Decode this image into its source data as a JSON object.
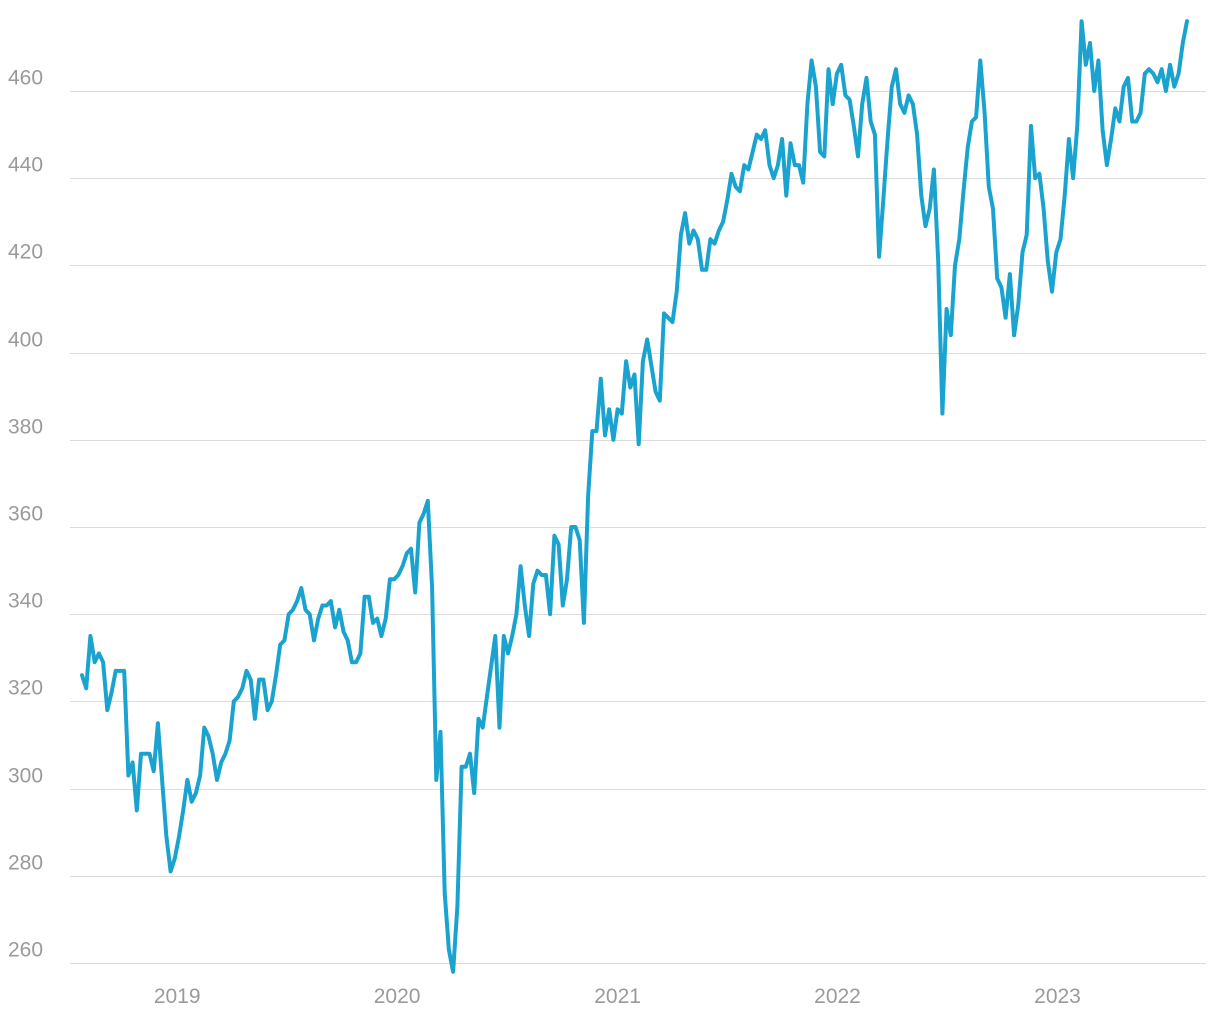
{
  "colors": {
    "line": "#1aa3cf",
    "grid": "#dcdcdc",
    "tick_text": "#9a9a9a",
    "background": "#ffffff"
  },
  "chart_data": {
    "type": "line",
    "title": "",
    "xlabel": "",
    "ylabel": "",
    "x_tick_labels": [
      "2019",
      "2020",
      "2021",
      "2022",
      "2023"
    ],
    "y_ticks": [
      260,
      280,
      300,
      320,
      340,
      360,
      380,
      400,
      420,
      440,
      460
    ],
    "ylim": [
      258,
      476
    ],
    "xlim": [
      "2018-07-27",
      "2023-08-04"
    ],
    "grid": true,
    "legend": "none",
    "x": [
      "2018-07-27",
      "2018-08-03",
      "2018-08-10",
      "2018-08-17",
      "2018-08-24",
      "2018-08-31",
      "2018-09-07",
      "2018-09-14",
      "2018-09-21",
      "2018-09-28",
      "2018-10-05",
      "2018-10-12",
      "2018-10-19",
      "2018-10-26",
      "2018-11-02",
      "2018-11-09",
      "2018-11-16",
      "2018-11-23",
      "2018-11-30",
      "2018-12-07",
      "2018-12-14",
      "2018-12-21",
      "2018-12-28",
      "2019-01-04",
      "2019-01-11",
      "2019-01-18",
      "2019-01-25",
      "2019-02-01",
      "2019-02-08",
      "2019-02-15",
      "2019-02-22",
      "2019-03-01",
      "2019-03-08",
      "2019-03-15",
      "2019-03-22",
      "2019-03-29",
      "2019-04-05",
      "2019-04-12",
      "2019-04-19",
      "2019-04-26",
      "2019-05-03",
      "2019-05-10",
      "2019-05-17",
      "2019-05-24",
      "2019-05-31",
      "2019-06-07",
      "2019-06-14",
      "2019-06-21",
      "2019-06-28",
      "2019-07-05",
      "2019-07-12",
      "2019-07-19",
      "2019-07-26",
      "2019-08-02",
      "2019-08-09",
      "2019-08-16",
      "2019-08-23",
      "2019-08-30",
      "2019-09-06",
      "2019-09-13",
      "2019-09-20",
      "2019-09-27",
      "2019-10-04",
      "2019-10-11",
      "2019-10-18",
      "2019-10-25",
      "2019-11-01",
      "2019-11-08",
      "2019-11-15",
      "2019-11-22",
      "2019-11-29",
      "2019-12-06",
      "2019-12-13",
      "2019-12-20",
      "2019-12-27",
      "2020-01-03",
      "2020-01-10",
      "2020-01-17",
      "2020-01-24",
      "2020-01-31",
      "2020-02-07",
      "2020-02-14",
      "2020-02-21",
      "2020-02-28",
      "2020-03-06",
      "2020-03-13",
      "2020-03-20",
      "2020-03-27",
      "2020-04-03",
      "2020-04-10",
      "2020-04-17",
      "2020-04-24",
      "2020-05-01",
      "2020-05-08",
      "2020-05-15",
      "2020-05-22",
      "2020-05-29",
      "2020-06-05",
      "2020-06-12",
      "2020-06-19",
      "2020-06-26",
      "2020-07-03",
      "2020-07-10",
      "2020-07-17",
      "2020-07-24",
      "2020-07-31",
      "2020-08-07",
      "2020-08-14",
      "2020-08-21",
      "2020-08-28",
      "2020-09-04",
      "2020-09-11",
      "2020-09-18",
      "2020-09-25",
      "2020-10-02",
      "2020-10-09",
      "2020-10-16",
      "2020-10-23",
      "2020-10-30",
      "2020-11-06",
      "2020-11-13",
      "2020-11-20",
      "2020-11-27",
      "2020-12-04",
      "2020-12-11",
      "2020-12-18",
      "2020-12-25",
      "2021-01-01",
      "2021-01-08",
      "2021-01-15",
      "2021-01-22",
      "2021-01-29",
      "2021-02-05",
      "2021-02-12",
      "2021-02-19",
      "2021-02-26",
      "2021-03-05",
      "2021-03-12",
      "2021-03-19",
      "2021-03-26",
      "2021-04-02",
      "2021-04-09",
      "2021-04-16",
      "2021-04-23",
      "2021-04-30",
      "2021-05-07",
      "2021-05-14",
      "2021-05-21",
      "2021-05-28",
      "2021-06-04",
      "2021-06-11",
      "2021-06-18",
      "2021-06-25",
      "2021-07-02",
      "2021-07-09",
      "2021-07-16",
      "2021-07-23",
      "2021-07-30",
      "2021-08-06",
      "2021-08-13",
      "2021-08-20",
      "2021-08-27",
      "2021-09-03",
      "2021-09-10",
      "2021-09-17",
      "2021-09-24",
      "2021-10-01",
      "2021-10-08",
      "2021-10-15",
      "2021-10-22",
      "2021-10-29",
      "2021-11-05",
      "2021-11-12",
      "2021-11-19",
      "2021-11-26",
      "2021-12-03",
      "2021-12-10",
      "2021-12-17",
      "2021-12-24",
      "2021-12-31",
      "2022-01-07",
      "2022-01-14",
      "2022-01-21",
      "2022-01-28",
      "2022-02-04",
      "2022-02-11",
      "2022-02-18",
      "2022-02-25",
      "2022-03-04",
      "2022-03-11",
      "2022-03-18",
      "2022-03-25",
      "2022-04-01",
      "2022-04-08",
      "2022-04-15",
      "2022-04-22",
      "2022-04-29",
      "2022-05-06",
      "2022-05-13",
      "2022-05-20",
      "2022-05-27",
      "2022-06-03",
      "2022-06-10",
      "2022-06-17",
      "2022-06-24",
      "2022-07-01",
      "2022-07-08",
      "2022-07-15",
      "2022-07-22",
      "2022-07-29",
      "2022-08-05",
      "2022-08-12",
      "2022-08-19",
      "2022-08-26",
      "2022-09-02",
      "2022-09-09",
      "2022-09-16",
      "2022-09-23",
      "2022-09-30",
      "2022-10-07",
      "2022-10-14",
      "2022-10-21",
      "2022-10-28",
      "2022-11-04",
      "2022-11-11",
      "2022-11-18",
      "2022-11-25",
      "2022-12-02",
      "2022-12-09",
      "2022-12-16",
      "2022-12-23",
      "2022-12-30",
      "2023-01-06",
      "2023-01-13",
      "2023-01-20",
      "2023-01-27",
      "2023-02-03",
      "2023-02-10",
      "2023-02-17",
      "2023-02-24",
      "2023-03-03",
      "2023-03-10",
      "2023-03-17",
      "2023-03-24",
      "2023-03-31",
      "2023-04-07",
      "2023-04-14",
      "2023-04-21",
      "2023-04-28",
      "2023-05-05",
      "2023-05-12",
      "2023-05-19",
      "2023-05-26",
      "2023-06-02",
      "2023-06-09",
      "2023-06-16",
      "2023-06-23",
      "2023-06-30",
      "2023-07-07",
      "2023-07-14",
      "2023-07-21",
      "2023-07-28",
      "2023-08-04"
    ],
    "series": [
      {
        "values": [
          326,
          323,
          335,
          329,
          331,
          329,
          318,
          322,
          327,
          327,
          327,
          303,
          306,
          295,
          308,
          308,
          308,
          304,
          315,
          302,
          289,
          281,
          284,
          289,
          295,
          302,
          297,
          299,
          303,
          314,
          312,
          308,
          302,
          306,
          308,
          311,
          320,
          321,
          323,
          327,
          325,
          316,
          325,
          325,
          318,
          320,
          326,
          333,
          334,
          340,
          341,
          343,
          346,
          341,
          340,
          334,
          339,
          342,
          342,
          343,
          337,
          341,
          336,
          334,
          329,
          329,
          331,
          344,
          344,
          338,
          339,
          335,
          339,
          348,
          348,
          349,
          351,
          354,
          355,
          345,
          361,
          363,
          366,
          346,
          302,
          313,
          276,
          263,
          258,
          273,
          305,
          305,
          308,
          299,
          316,
          314,
          321,
          328,
          335,
          314,
          335,
          331,
          335,
          340,
          351,
          342,
          335,
          347,
          350,
          349,
          349,
          340,
          358,
          356,
          342,
          348,
          360,
          360,
          357,
          338,
          367,
          382,
          382,
          394,
          381,
          387,
          380,
          387,
          386,
          398,
          392,
          395,
          379,
          398,
          403,
          397,
          391,
          389,
          409,
          408,
          407,
          414,
          427,
          432,
          425,
          428,
          426,
          419,
          419,
          426,
          425,
          428,
          430,
          435,
          441,
          438,
          437,
          443,
          442,
          446,
          450,
          449,
          451,
          443,
          440,
          443,
          449,
          436,
          448,
          443,
          443,
          439,
          457,
          467,
          461,
          446,
          445,
          465,
          457,
          464,
          466,
          459,
          458,
          452,
          445,
          457,
          463,
          453,
          450,
          422,
          435,
          449,
          461,
          465,
          457,
          455,
          459,
          457,
          450,
          436,
          429,
          433,
          442,
          421,
          386,
          410,
          404,
          420,
          426,
          437,
          447,
          453,
          454,
          467,
          455,
          438,
          433,
          417,
          415,
          408,
          418,
          404,
          411,
          423,
          427,
          452,
          440,
          441,
          433,
          421,
          414,
          423,
          426,
          436,
          449,
          440,
          452,
          476,
          466,
          471,
          460,
          467,
          451,
          443,
          449,
          456,
          453,
          461,
          463,
          453,
          453,
          455,
          464,
          465,
          464,
          462,
          465,
          460,
          466,
          461,
          464,
          471,
          476
        ]
      }
    ]
  }
}
